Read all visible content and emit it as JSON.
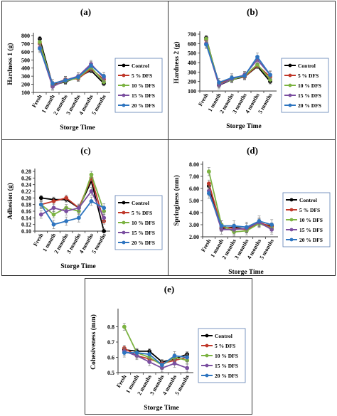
{
  "chart_data": [
    {
      "panel_label": "(a)",
      "type": "line",
      "categories": [
        "Fresh",
        "1 month",
        "2 months",
        "3 months",
        "4 months",
        "5 months"
      ],
      "xlabel": "Storge Time",
      "ylabel": "Hardness 1 (g)",
      "ylim": [
        100,
        800
      ],
      "yticks": [
        "100",
        "200",
        "300",
        "400",
        "500",
        "600",
        "700",
        "800"
      ],
      "series": [
        {
          "name": "Control",
          "color": "#000000",
          "values": [
            760,
            190,
            230,
            290,
            370,
            210
          ]
        },
        {
          "name": "5   % DFS",
          "color": "#c0392b",
          "values": [
            700,
            200,
            260,
            270,
            390,
            260
          ]
        },
        {
          "name": "10 % DFS",
          "color": "#7cb342",
          "values": [
            720,
            180,
            240,
            280,
            410,
            230
          ]
        },
        {
          "name": "15 % DFS",
          "color": "#7b4fa0",
          "values": [
            650,
            170,
            250,
            300,
            450,
            280
          ]
        },
        {
          "name": "20 % DFS",
          "color": "#2e75c0",
          "values": [
            640,
            210,
            250,
            290,
            430,
            300
          ]
        }
      ]
    },
    {
      "panel_label": "(b)",
      "type": "line",
      "categories": [
        "Fresh",
        "1 month",
        "2 months",
        "3 months",
        "4 months",
        "5 months"
      ],
      "xlabel": "Storge Time",
      "ylabel": "Hardness 2 (g)",
      "ylim": [
        100,
        700
      ],
      "yticks": [
        "100",
        "200",
        "300",
        "400",
        "500",
        "600",
        "700"
      ],
      "series": [
        {
          "name": "Control",
          "color": "#000000",
          "values": [
            660,
            160,
            220,
            250,
            360,
            200
          ]
        },
        {
          "name": "5   % DFS",
          "color": "#c0392b",
          "values": [
            640,
            180,
            230,
            250,
            370,
            250
          ]
        },
        {
          "name": "10 % DFS",
          "color": "#7cb342",
          "values": [
            650,
            170,
            220,
            260,
            380,
            220
          ]
        },
        {
          "name": "15 % DFS",
          "color": "#7b4fa0",
          "values": [
            600,
            160,
            230,
            270,
            430,
            270
          ]
        },
        {
          "name": "20 % DFS",
          "color": "#2e75c0",
          "values": [
            590,
            190,
            240,
            260,
            460,
            270
          ]
        }
      ]
    },
    {
      "panel_label": "(c)",
      "type": "line",
      "categories": [
        "Fresh",
        "1 month",
        "2 months",
        "3 months",
        "4 months",
        "5 months"
      ],
      "xlabel": "Storge Time",
      "ylabel": "Adhesion (g)",
      "ylim": [
        0.1,
        0.28
      ],
      "yticks": [
        "0.10",
        "0.12",
        "0.14",
        "0.16",
        "0.18",
        "0.20",
        "0.22",
        "0.24",
        "0.26",
        "0.28"
      ],
      "series": [
        {
          "name": "Control",
          "color": "#000000",
          "values": [
            0.2,
            0.195,
            0.195,
            0.17,
            0.25,
            0.1
          ]
        },
        {
          "name": "5   % DFS",
          "color": "#c0392b",
          "values": [
            0.18,
            0.19,
            0.2,
            0.17,
            0.26,
            0.13
          ]
        },
        {
          "name": "10 % DFS",
          "color": "#7cb342",
          "values": [
            0.18,
            0.15,
            0.17,
            0.16,
            0.27,
            0.16
          ]
        },
        {
          "name": "15 % DFS",
          "color": "#7b4fa0",
          "values": [
            0.15,
            0.17,
            0.16,
            0.17,
            0.22,
            0.14
          ]
        },
        {
          "name": "20 % DFS",
          "color": "#2e75c0",
          "values": [
            0.18,
            0.12,
            0.13,
            0.14,
            0.19,
            0.17
          ]
        }
      ]
    },
    {
      "panel_label": "(d)",
      "type": "line",
      "categories": [
        "Fresh",
        "1 month",
        "2 months",
        "3 months",
        "4 months",
        "5 months"
      ],
      "xlabel": "Storge Time",
      "ylabel": "Springiness (mm)",
      "ylim": [
        2.0,
        8.0
      ],
      "yticks": [
        "2.00",
        "3.00",
        "4.00",
        "5.00",
        "6.00",
        "7.00",
        "8.00"
      ],
      "series": [
        {
          "name": "Control",
          "color": "#000000",
          "values": [
            6.2,
            2.7,
            2.8,
            2.6,
            3.1,
            2.9
          ]
        },
        {
          "name": "5   % DFS",
          "color": "#c0392b",
          "values": [
            6.4,
            2.8,
            2.7,
            2.6,
            3.2,
            2.8
          ]
        },
        {
          "name": "10 % DFS",
          "color": "#7cb342",
          "values": [
            7.4,
            3.0,
            2.4,
            2.5,
            3.1,
            2.7
          ]
        },
        {
          "name": "15 % DFS",
          "color": "#7b4fa0",
          "values": [
            5.8,
            2.6,
            2.6,
            2.7,
            3.2,
            2.6
          ]
        },
        {
          "name": "20 % DFS",
          "color": "#2e75c0",
          "values": [
            5.6,
            2.9,
            2.9,
            2.8,
            3.3,
            3.0
          ]
        }
      ]
    },
    {
      "panel_label": "(e)",
      "type": "line",
      "categories": [
        "Fresh",
        "1 month",
        "2 months",
        "3 months",
        "4 months",
        "5 months"
      ],
      "xlabel": "Storge Time",
      "ylabel": "Cohesiveness (mm)",
      "ylim": [
        0.5,
        0.9
      ],
      "yticks": [
        "0.5",
        "0.6",
        "0.7",
        "0.8"
      ],
      "series": [
        {
          "name": "Control",
          "color": "#000000",
          "values": [
            0.65,
            0.64,
            0.64,
            0.57,
            0.59,
            0.62
          ]
        },
        {
          "name": "5   % DFS",
          "color": "#c0392b",
          "values": [
            0.66,
            0.61,
            0.59,
            0.56,
            0.58,
            0.6
          ]
        },
        {
          "name": "10 % DFS",
          "color": "#7cb342",
          "values": [
            0.8,
            0.63,
            0.6,
            0.55,
            0.6,
            0.58
          ]
        },
        {
          "name": "15 % DFS",
          "color": "#7b4fa0",
          "values": [
            0.64,
            0.61,
            0.57,
            0.53,
            0.56,
            0.53
          ]
        },
        {
          "name": "20 % DFS",
          "color": "#2e75c0",
          "values": [
            0.63,
            0.63,
            0.62,
            0.55,
            0.61,
            0.6
          ]
        }
      ]
    }
  ]
}
